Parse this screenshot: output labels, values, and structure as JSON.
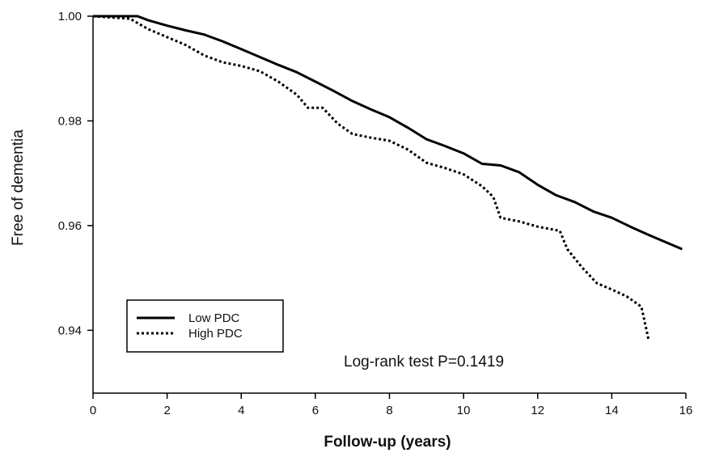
{
  "chart_data": {
    "type": "line",
    "xlabel": "Follow-up (years)",
    "ylabel": "Free of dementia",
    "xlim": [
      0,
      16
    ],
    "ylim": [
      0.928,
      1.0
    ],
    "x_ticks": [
      "0",
      "2",
      "4",
      "6",
      "8",
      "10",
      "12",
      "14",
      "16"
    ],
    "y_ticks": [
      "1.00",
      "0.98",
      "0.96",
      "0.94"
    ],
    "y_tick_values": [
      1.0,
      0.98,
      0.96,
      0.94
    ],
    "x_tick_values": [
      0,
      2,
      4,
      6,
      8,
      10,
      12,
      14,
      16
    ],
    "grid": false,
    "legend_position": "bottom-left",
    "annotation": "Log-rank test P=0.1419",
    "series": [
      {
        "name": "Low PDC",
        "style": "solid",
        "color": "#000000",
        "x": [
          0,
          1.2,
          1.5,
          2.0,
          2.5,
          3.0,
          3.5,
          4.0,
          4.5,
          5.0,
          5.5,
          6.0,
          6.5,
          7.0,
          7.5,
          8.0,
          8.5,
          9.0,
          9.5,
          10.0,
          10.5,
          11.0,
          11.5,
          12.0,
          12.5,
          13.0,
          13.5,
          14.0,
          14.5,
          15.0,
          15.5,
          15.9
        ],
        "y": [
          1.0,
          1.0,
          0.9992,
          0.9982,
          0.9973,
          0.9965,
          0.9952,
          0.9937,
          0.9922,
          0.9907,
          0.9893,
          0.9875,
          0.9857,
          0.9838,
          0.9822,
          0.9807,
          0.9787,
          0.9765,
          0.9752,
          0.9738,
          0.9718,
          0.9715,
          0.9702,
          0.9678,
          0.9658,
          0.9645,
          0.9627,
          0.9615,
          0.9598,
          0.9582,
          0.9567,
          0.9555
        ]
      },
      {
        "name": "High PDC",
        "style": "dotted",
        "color": "#000000",
        "x": [
          0,
          1.0,
          1.5,
          2.0,
          2.5,
          3.0,
          3.5,
          4.0,
          4.5,
          5.0,
          5.5,
          5.8,
          6.2,
          6.6,
          7.0,
          7.5,
          8.0,
          8.5,
          9.0,
          9.5,
          10.0,
          10.5,
          10.8,
          11.0,
          11.5,
          12.0,
          12.6,
          12.8,
          13.2,
          13.6,
          14.0,
          14.4,
          14.8,
          15.0
        ],
        "y": [
          1.0,
          0.9995,
          0.9975,
          0.996,
          0.9945,
          0.9925,
          0.9912,
          0.9905,
          0.9895,
          0.9875,
          0.985,
          0.9825,
          0.9825,
          0.9795,
          0.9775,
          0.9768,
          0.9762,
          0.9745,
          0.972,
          0.971,
          0.9698,
          0.9675,
          0.9655,
          0.9615,
          0.9608,
          0.9598,
          0.959,
          0.9555,
          0.952,
          0.949,
          0.9478,
          0.9465,
          0.9445,
          0.938
        ]
      }
    ]
  }
}
